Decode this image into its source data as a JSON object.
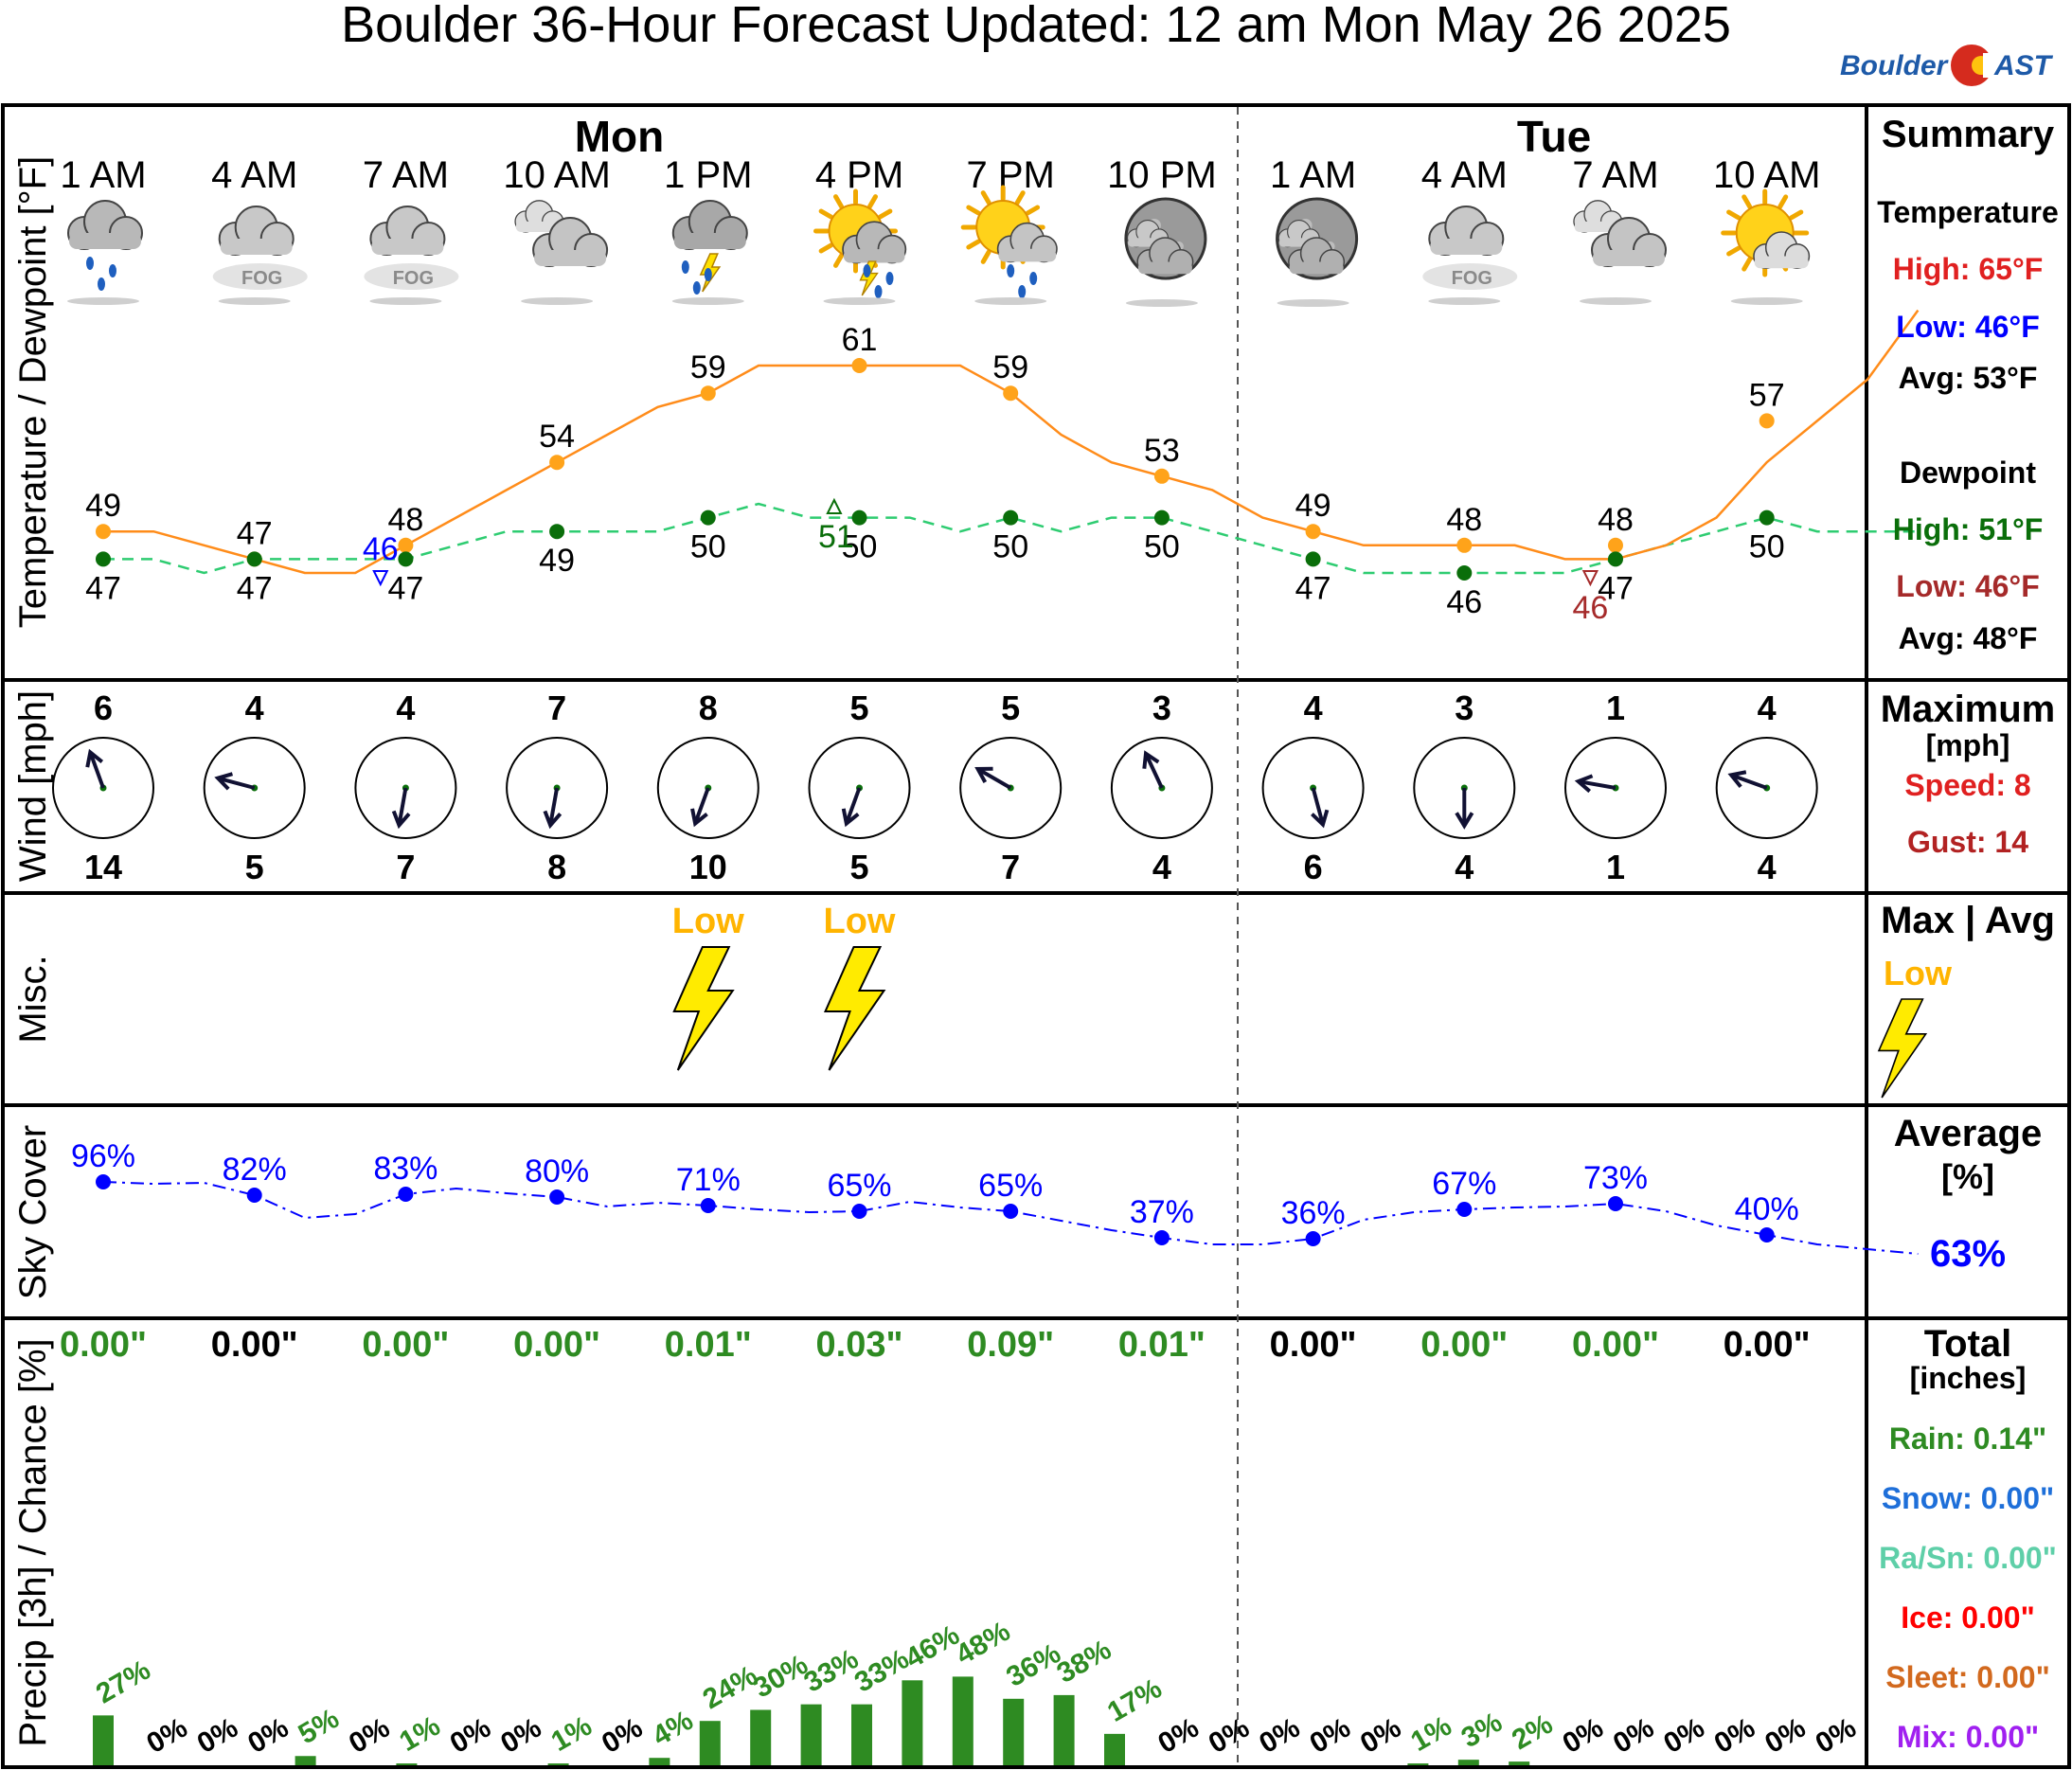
{
  "header": {
    "title": "Boulder 36-Hour Forecast Updated: 12 am Mon May 26 2025",
    "logo": "BoulderCAST",
    "logo_part1": "Boulder",
    "logo_part2": "AST"
  },
  "days": [
    "Mon",
    "Tue"
  ],
  "hours": [
    "1 AM",
    "4 AM",
    "7 AM",
    "10 AM",
    "1 PM",
    "4 PM",
    "7 PM",
    "10 PM",
    "1 AM",
    "4 AM",
    "7 AM",
    "10 AM"
  ],
  "icons": [
    "rain-icon",
    "fog-icon",
    "fog-icon",
    "cloudy-icon",
    "thunderstorm-icon",
    "partly-sunny-thunderstorm-icon",
    "partly-sunny-rain-icon",
    "night-cloudy-icon",
    "night-cloudy-icon",
    "fog-icon",
    "cloudy-icon",
    "partly-sunny-icon"
  ],
  "panels": {
    "temperature": "Temperature / Dewpoint [°F]",
    "wind": "Wind [mph]",
    "misc": "Misc.",
    "sky": "Sky Cover",
    "precip": "Precip [3h] / Chance [%]"
  },
  "summary": {
    "heading": "Summary",
    "temperature_label": "Temperature",
    "temp_high": "High: 65°F",
    "temp_low": "Low: 46°F",
    "temp_avg": "Avg: 53°F",
    "dewpoint_label": "Dewpoint",
    "dew_high": "High: 51°F",
    "dew_low": "Low: 46°F",
    "dew_avg": "Avg: 48°F",
    "wind_heading": "Maximum",
    "wind_unit": "[mph]",
    "wind_speed": "Speed: 8",
    "wind_gust": "Gust: 14",
    "misc_heading": "Max | Avg",
    "misc_value": "Low",
    "sky_heading": "Average",
    "sky_unit": "[%]",
    "sky_value": "63%",
    "precip_heading": "Total",
    "precip_unit": "[inches]",
    "rain": "Rain: 0.14\"",
    "snow": "Snow: 0.00\"",
    "rasn": "Ra/Sn: 0.00\"",
    "ice": "Ice: 0.00\"",
    "sleet": "Sleet: 0.00\"",
    "mix": "Mix: 0.00\""
  },
  "colors": {
    "temperature": "#ff8c1a",
    "temp_marker": "#ffa31a",
    "dewpoint": "#2ecc71",
    "dew_marker": "#0a6e0a",
    "sky": "#0000ff",
    "precip_bar": "#2e8b22",
    "precip_label": "#2e8b22",
    "high_red": "#e02020",
    "low_blue": "#0000ff",
    "dew_green": "#0a6e0a",
    "dew_low": "#a52a2a",
    "lightning": "#ffeb00",
    "low_text": "#ffb400",
    "snow": "#1e6fd9",
    "rasn": "#5ecfa8",
    "ice": "#ff0000",
    "sleet": "#d2691e",
    "mix": "#a020f0"
  },
  "chart_data": [
    {
      "type": "line",
      "name": "temperature-dewpoint",
      "x": [
        "1 AM",
        "4 AM",
        "7 AM",
        "10 AM",
        "1 PM",
        "4 PM",
        "7 PM",
        "10 PM",
        "1 AM",
        "4 AM",
        "7 AM",
        "10 AM"
      ],
      "series": [
        {
          "values": [
            49,
            47,
            48,
            54,
            59,
            61,
            59,
            53,
            49,
            48,
            48,
            57
          ],
          "labels": [
            "49",
            "47",
            "48",
            "54",
            "59",
            "61",
            "59",
            "53",
            "49",
            "48",
            "48",
            "57"
          ],
          "hourly": [
            49,
            49,
            48,
            47,
            46,
            46,
            48,
            50,
            52,
            54,
            56,
            58,
            59,
            61,
            61,
            61,
            61,
            61,
            59,
            56,
            54,
            53,
            52,
            50,
            49,
            48,
            48,
            48,
            48,
            47,
            47,
            48,
            50,
            54,
            57,
            60,
            65
          ]
        },
        {
          "values": [
            47,
            47,
            47,
            49,
            50,
            50,
            50,
            50,
            47,
            46,
            47,
            50
          ],
          "labels": [
            "47",
            "47",
            "47",
            "49",
            "50",
            "50",
            "50",
            "50",
            "47",
            "46",
            "47",
            "50"
          ],
          "hourly": [
            47,
            47,
            46,
            47,
            47,
            47,
            47,
            48,
            49,
            49,
            49,
            49,
            50,
            51,
            50,
            50,
            50,
            49,
            50,
            49,
            50,
            50,
            49,
            48,
            47,
            46,
            46,
            46,
            46,
            46,
            47,
            48,
            49,
            50,
            49,
            49,
            49
          ]
        }
      ],
      "annotations": [
        {
          "label": "46",
          "x": "between 4 AM and 7 AM",
          "kind": "temperature minimum"
        },
        {
          "label": "51",
          "x": "between 1 PM and 4 PM",
          "kind": "dewpoint maximum"
        },
        {
          "label": "46",
          "x": "between 4 AM and 7 AM Tue",
          "kind": "dewpoint minimum"
        }
      ]
    },
    {
      "type": "wind",
      "name": "wind",
      "x": [
        "1 AM",
        "4 AM",
        "7 AM",
        "10 AM",
        "1 PM",
        "4 PM",
        "7 PM",
        "10 PM",
        "1 AM",
        "4 AM",
        "7 AM",
        "10 AM"
      ],
      "speed": [
        "6",
        "4",
        "4",
        "7",
        "8",
        "5",
        "5",
        "3",
        "4",
        "3",
        "1",
        "4"
      ],
      "gust": [
        "14",
        "5",
        "7",
        "8",
        "10",
        "5",
        "7",
        "4",
        "6",
        "4",
        "1",
        "4"
      ],
      "direction_deg": [
        340,
        285,
        190,
        190,
        200,
        200,
        300,
        335,
        165,
        180,
        280,
        290
      ]
    },
    {
      "type": "misc",
      "name": "lightning",
      "x": [
        "1 PM",
        "4 PM"
      ],
      "labels": [
        "Low",
        "Low"
      ]
    },
    {
      "type": "line",
      "name": "sky-cover",
      "x": [
        "1 AM",
        "4 AM",
        "7 AM",
        "10 AM",
        "1 PM",
        "4 PM",
        "7 PM",
        "10 PM",
        "1 AM",
        "4 AM",
        "7 AM",
        "10 AM"
      ],
      "values": [
        96,
        82,
        83,
        80,
        71,
        65,
        65,
        37,
        36,
        67,
        73,
        40
      ],
      "labels": [
        "96%",
        "82%",
        "83%",
        "80%",
        "71%",
        "65%",
        "65%",
        "37%",
        "36%",
        "67%",
        "73%",
        "40%"
      ],
      "hourly": [
        96,
        94,
        95,
        82,
        58,
        62,
        83,
        89,
        84,
        80,
        70,
        74,
        71,
        67,
        64,
        65,
        75,
        69,
        65,
        55,
        45,
        37,
        30,
        30,
        36,
        56,
        64,
        67,
        69,
        70,
        73,
        65,
        50,
        40,
        30,
        25,
        20
      ],
      "ylim": [
        0,
        100
      ]
    },
    {
      "type": "bar",
      "name": "precip-chance",
      "amounts": [
        "0.00\"",
        "0.00\"",
        "0.00\"",
        "0.00\"",
        "0.01\"",
        "0.03\"",
        "0.09\"",
        "0.01\"",
        "0.00\"",
        "0.00\"",
        "0.00\"",
        "0.00\""
      ],
      "amount_colors": [
        "green",
        "black",
        "green",
        "green",
        "green",
        "green",
        "green",
        "green",
        "black",
        "green",
        "green",
        "black"
      ],
      "values": [
        27,
        0,
        0,
        0,
        5,
        0,
        1,
        0,
        0,
        1,
        0,
        4,
        24,
        30,
        33,
        33,
        46,
        48,
        36,
        38,
        17,
        0,
        0,
        0,
        0,
        0,
        1,
        3,
        2,
        0,
        0,
        0,
        0,
        0,
        0
      ],
      "labels": [
        "27%",
        "0%",
        "0%",
        "0%",
        "5%",
        "0%",
        "1%",
        "0%",
        "0%",
        "1%",
        "0%",
        "4%",
        "24%",
        "30%",
        "33%",
        "33%",
        "46%",
        "48%",
        "36%",
        "38%",
        "17%",
        "0%",
        "0%",
        "0%",
        "0%",
        "0%",
        "1%",
        "3%",
        "2%",
        "0%",
        "0%",
        "0%",
        "0%",
        "0%",
        "0%"
      ],
      "ylim": [
        0,
        100
      ]
    }
  ]
}
